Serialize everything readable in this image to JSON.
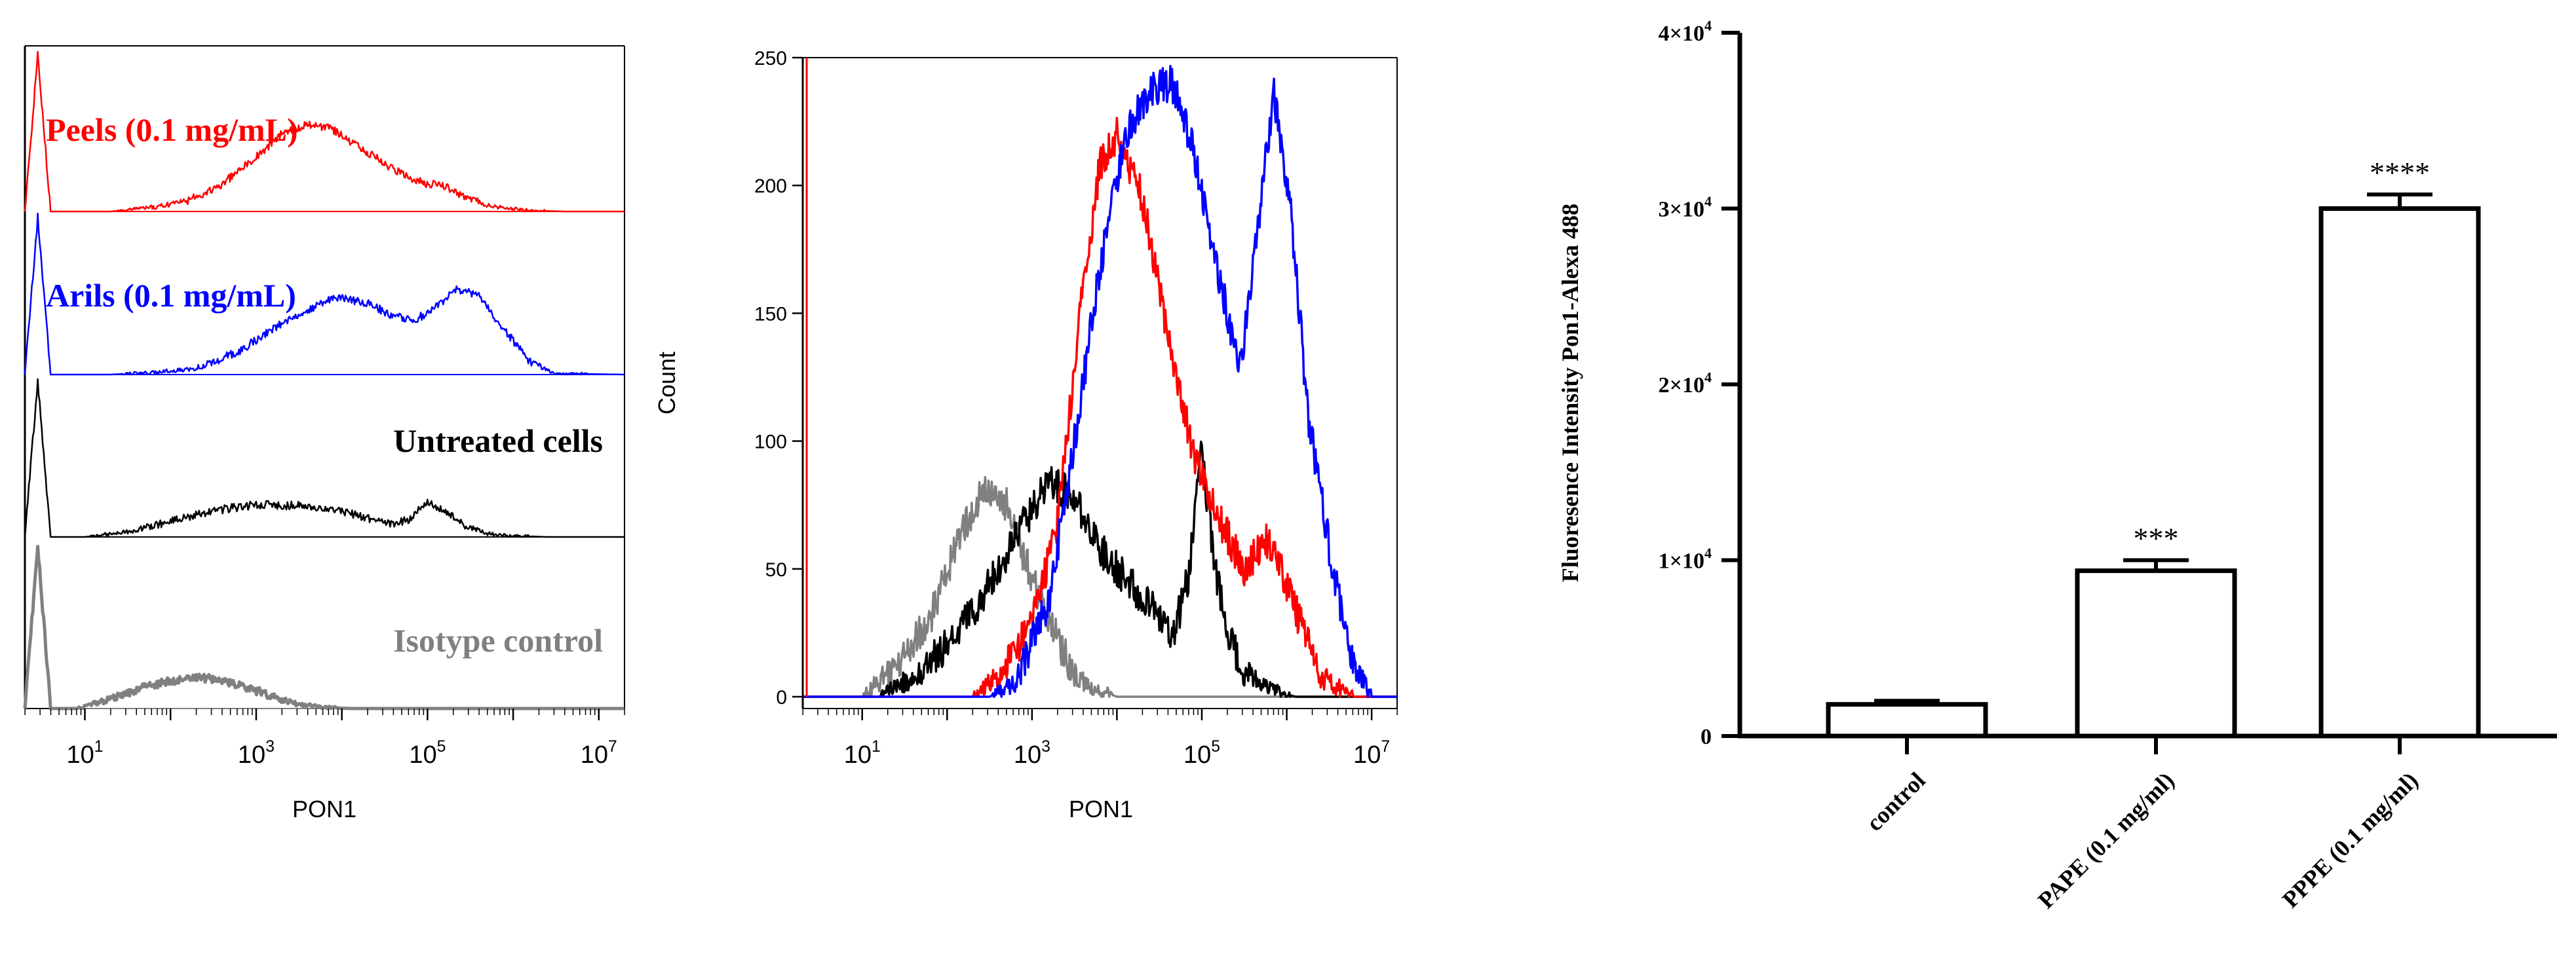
{
  "chart_data": [
    {
      "type": "line",
      "panel": "staggered-histograms",
      "xlabel": "PON1",
      "xscale": "log10",
      "xlim_exp": [
        0.3,
        7.3
      ],
      "ticks": [
        {
          "exp": 1,
          "label": "10",
          "sup": "1"
        },
        {
          "exp": 3,
          "label": "10",
          "sup": "3"
        },
        {
          "exp": 5,
          "label": "10",
          "sup": "5"
        },
        {
          "exp": 7,
          "label": "10",
          "sup": "7"
        }
      ],
      "series": [
        {
          "name": "Peels (0.1 mg/mL)",
          "color": "#ff0000",
          "x": [
            0.3,
            0.45,
            0.6,
            1.3,
            1.8,
            2.2,
            2.6,
            3.0,
            3.3,
            3.6,
            3.85,
            4.2,
            4.6,
            4.95,
            5.2,
            5.5,
            5.8,
            6.2,
            6.6,
            7.3
          ],
          "y": [
            0,
            150,
            0,
            0,
            4,
            10,
            26,
            52,
            74,
            83,
            80,
            62,
            40,
            27,
            24,
            12,
            4,
            1,
            0,
            0
          ]
        },
        {
          "name": "Arils (0.1 mg/mL)",
          "color": "#0000ff",
          "x": [
            0.3,
            0.45,
            0.6,
            1.3,
            1.8,
            2.3,
            2.8,
            3.2,
            3.6,
            3.95,
            4.3,
            4.6,
            4.85,
            5.1,
            5.35,
            5.6,
            5.85,
            6.2,
            6.5,
            7.3
          ],
          "y": [
            0,
            150,
            0,
            0,
            2,
            6,
            22,
            44,
            62,
            74,
            68,
            56,
            52,
            64,
            82,
            75,
            48,
            12,
            1,
            0
          ]
        },
        {
          "name": "Untreated cells",
          "color": "#000000",
          "x": [
            0.3,
            0.45,
            0.6,
            1.0,
            1.5,
            2.0,
            2.5,
            3.0,
            3.4,
            3.7,
            4.0,
            4.3,
            4.6,
            4.8,
            5.0,
            5.2,
            5.45,
            5.7,
            6.0,
            6.4,
            7.3
          ],
          "y": [
            0,
            150,
            0,
            0,
            5,
            15,
            25,
            31,
            30,
            29,
            24,
            18,
            12,
            17,
            34,
            24,
            10,
            3,
            1,
            0,
            0
          ]
        },
        {
          "name": "Isotype control",
          "color": "#808080",
          "x": [
            0.3,
            0.45,
            0.6,
            0.9,
            1.3,
            1.7,
            2.0,
            2.3,
            2.6,
            2.9,
            3.2,
            3.5,
            3.8,
            4.1,
            7.3
          ],
          "y": [
            0,
            155,
            0,
            0,
            9,
            21,
            26,
            30,
            27,
            20,
            11,
            4,
            1,
            0,
            0
          ]
        }
      ]
    },
    {
      "type": "line",
      "panel": "overlay-histogram",
      "xlabel": "PON1",
      "ylabel": "Count",
      "xscale": "log10",
      "xlim_exp": [
        0.3,
        7.3
      ],
      "ylim": [
        0,
        250
      ],
      "yticks": [
        0,
        50,
        100,
        150,
        200,
        250
      ],
      "xticks": [
        {
          "exp": 1,
          "label": "10",
          "sup": "1"
        },
        {
          "exp": 3,
          "label": "10",
          "sup": "3"
        },
        {
          "exp": 5,
          "label": "10",
          "sup": "5"
        },
        {
          "exp": 7,
          "label": "10",
          "sup": "7"
        }
      ],
      "series": [
        {
          "name": "Isotype control",
          "color": "#808080",
          "x": [
            0.3,
            1.0,
            1.4,
            1.8,
            2.1,
            2.4,
            2.7,
            2.9,
            3.1,
            3.3,
            3.5,
            3.75,
            4.0,
            7.3
          ],
          "y": [
            0,
            0,
            12,
            30,
            58,
            80,
            75,
            55,
            38,
            22,
            9,
            3,
            0,
            0
          ]
        },
        {
          "name": "Untreated cells",
          "color": "#000000",
          "x": [
            0.3,
            1.2,
            1.6,
            2.0,
            2.4,
            2.8,
            3.2,
            3.5,
            3.8,
            4.1,
            4.4,
            4.65,
            4.85,
            5.0,
            5.15,
            5.3,
            5.5,
            5.7,
            5.9,
            6.1,
            7.3
          ],
          "y": [
            0,
            0,
            8,
            20,
            38,
            62,
            84,
            78,
            58,
            46,
            36,
            22,
            48,
            96,
            52,
            24,
            10,
            4,
            2,
            0,
            0
          ]
        },
        {
          "name": "Peels (0.1 mg/mL)",
          "color": "#ff0000",
          "x": [
            0.3,
            2.3,
            2.6,
            3.0,
            3.3,
            3.6,
            3.8,
            4.0,
            4.3,
            4.6,
            4.9,
            5.2,
            5.5,
            5.75,
            5.9,
            6.15,
            6.4,
            6.8,
            7.3
          ],
          "y": [
            0,
            0,
            8,
            28,
            68,
            160,
            208,
            220,
            195,
            140,
            95,
            70,
            50,
            62,
            52,
            30,
            8,
            0,
            0
          ]
        },
        {
          "name": "Arils (0.1 mg/mL)",
          "color": "#0000ff",
          "x": [
            0.3,
            2.5,
            2.8,
            3.2,
            3.5,
            3.8,
            4.1,
            4.4,
            4.65,
            4.9,
            5.2,
            5.45,
            5.65,
            5.85,
            6.05,
            6.25,
            6.55,
            6.8,
            7.0,
            7.3
          ],
          "y": [
            0,
            0,
            5,
            38,
            100,
            168,
            220,
            238,
            240,
            215,
            165,
            128,
            182,
            236,
            190,
            110,
            48,
            12,
            0,
            0
          ]
        }
      ]
    },
    {
      "type": "bar",
      "panel": "bar-chart",
      "ylabel": "Fluoresence Intensity Pon1-Alexa 488",
      "ylim": [
        0,
        40000
      ],
      "yticks": [
        {
          "value": 0,
          "label": "0"
        },
        {
          "value": 10000,
          "label": "1×10",
          "sup": "4"
        },
        {
          "value": 20000,
          "label": "2×10",
          "sup": "4"
        },
        {
          "value": 30000,
          "label": "3×10",
          "sup": "4"
        },
        {
          "value": 40000,
          "label": "4×10",
          "sup": "4"
        }
      ],
      "categories": [
        "control",
        "PAPE (0.1 mg/ml)",
        "PPPE (0.1 mg/ml)"
      ],
      "values": [
        1800,
        9400,
        30000
      ],
      "errors": [
        200,
        600,
        800
      ],
      "annotations": [
        "",
        "***",
        "****"
      ]
    }
  ]
}
